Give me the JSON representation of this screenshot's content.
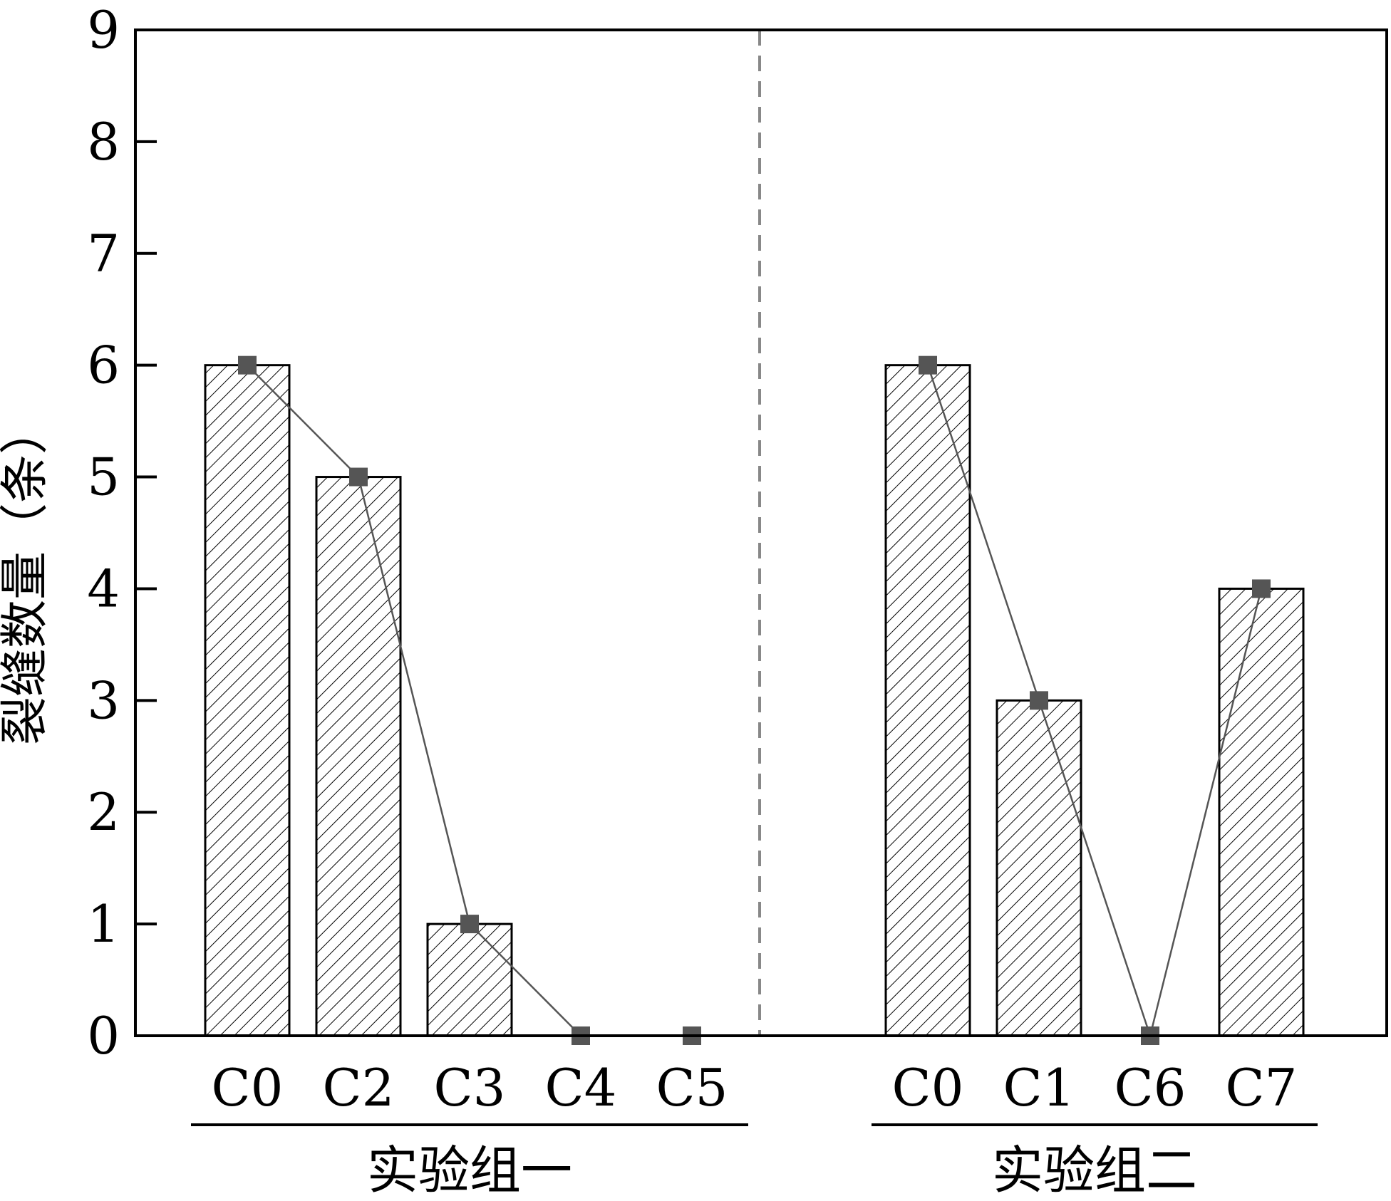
{
  "chart_data": {
    "type": "bar",
    "title": "",
    "xlabel": "",
    "ylabel": "裂缝数量（条）",
    "ylim": [
      0,
      9
    ],
    "yticks": [
      "0",
      "1",
      "2",
      "3",
      "4",
      "5",
      "6",
      "7",
      "8",
      "9"
    ],
    "grid": false,
    "legend": "none",
    "bar_fill": "diagonal-hatch",
    "line_color": "#555555",
    "marker": "square",
    "groups": [
      {
        "name": "实验组一",
        "categories": [
          "C0",
          "C2",
          "C3",
          "C4",
          "C5"
        ],
        "values": [
          6,
          5,
          1,
          0,
          0
        ]
      },
      {
        "name": "实验组二",
        "categories": [
          "C0",
          "C1",
          "C6",
          "C7"
        ],
        "values": [
          6,
          3,
          0,
          4
        ]
      }
    ]
  }
}
